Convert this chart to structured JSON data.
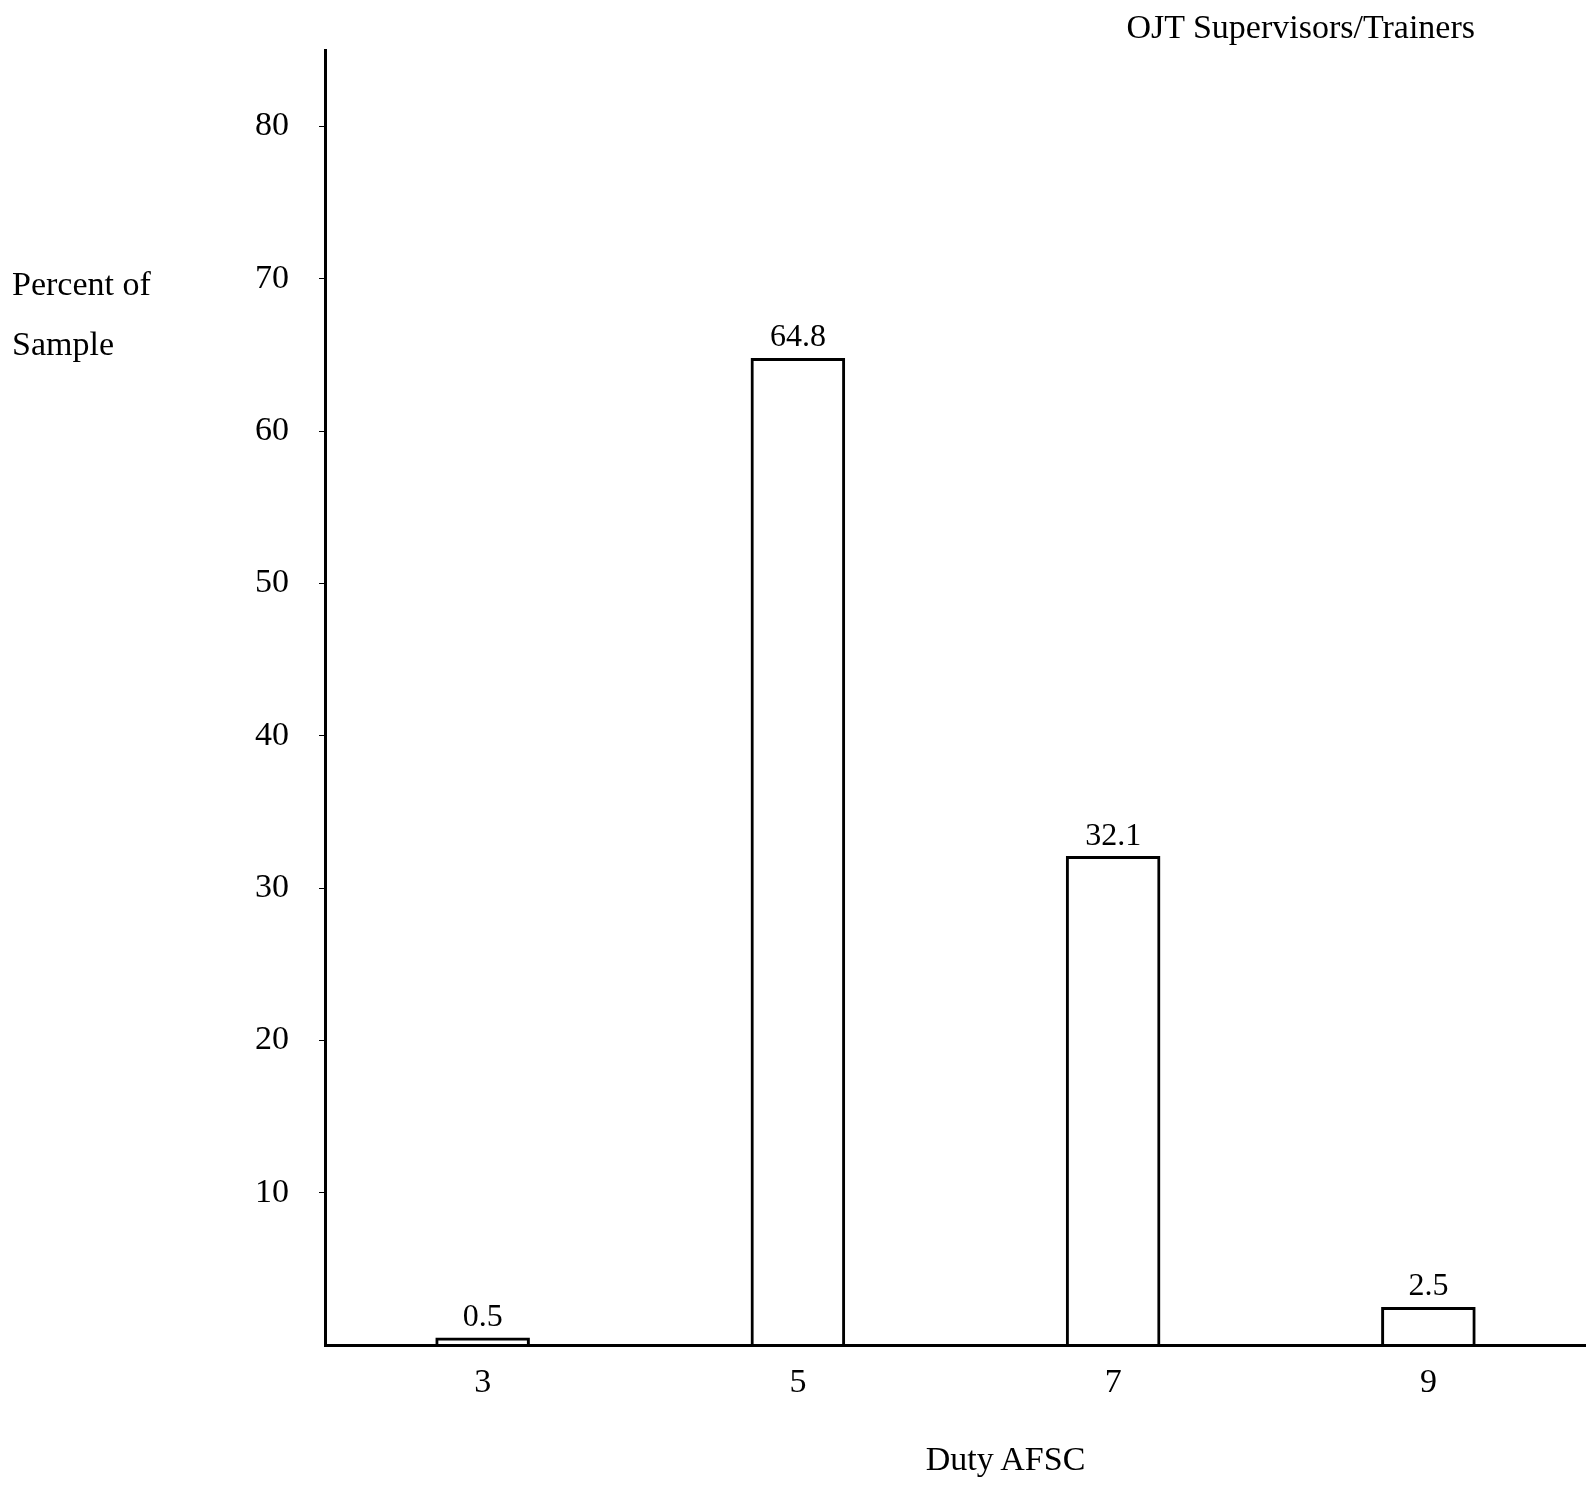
{
  "chart_data": {
    "type": "bar",
    "title": "OJT Supervisors/Trainers",
    "xlabel": "Duty AFSC",
    "ylabel": "Percent of Sample",
    "categories": [
      "3",
      "5",
      "7",
      "9"
    ],
    "values": [
      0.5,
      64.8,
      32.1,
      2.5
    ],
    "color": "#000000",
    "ylim": [
      0,
      85
    ],
    "yticks": [
      10,
      20,
      30,
      40,
      50,
      60,
      70,
      80
    ],
    "data_labels": true
  }
}
